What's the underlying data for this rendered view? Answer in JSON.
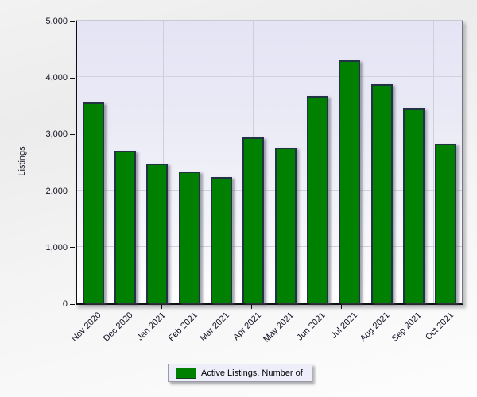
{
  "chart_data": {
    "type": "bar",
    "title": "",
    "categories": [
      "Nov 2020",
      "Dec 2020",
      "Jan 2021",
      "Feb 2021",
      "Mar 2021",
      "Apr 2021",
      "May 2021",
      "Jun 2021",
      "Jul 2021",
      "Aug 2021",
      "Sep 2021",
      "Oct 2021"
    ],
    "values": [
      3560,
      2690,
      2470,
      2330,
      2230,
      2930,
      2760,
      3660,
      4300,
      3870,
      3450,
      2820
    ],
    "series": [
      {
        "name": "Active Listings, Number of",
        "values": [
          3560,
          2690,
          2470,
          2330,
          2230,
          2930,
          2760,
          3660,
          4300,
          3870,
          3450,
          2820
        ]
      }
    ],
    "xlabel": "",
    "ylabel": "Listings",
    "ylim": [
      0,
      5000
    ],
    "ytick_interval": 1000,
    "ytick_labels": [
      "0",
      "1,000",
      "2,000",
      "3,000",
      "4,000",
      "5,000"
    ],
    "grid": true,
    "legend_position": "bottom",
    "bar_color": "#008000",
    "bar_border_color": "#223344"
  },
  "y_axis": {
    "title": "Listings"
  },
  "legend": {
    "label": "Active Listings, Number of",
    "swatch_color": "#008000"
  }
}
